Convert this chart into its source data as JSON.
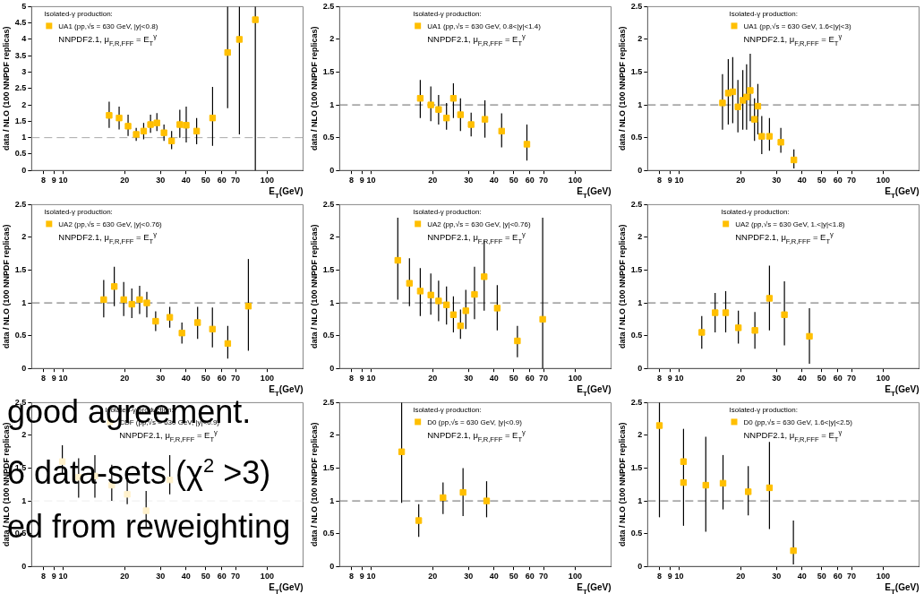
{
  "chart_data": [
    {
      "type": "scatter",
      "xlabel": "E$_{T}$(GeV)",
      "ylabel": "data / NLO (100 NNPDF replicas)",
      "legend_title": "Isolated-γ production:",
      "legend": "top left",
      "marker": "square",
      "log": "x",
      "xlim": [
        7,
        150
      ],
      "xticks": [
        8,
        9,
        10,
        20,
        30,
        40,
        50,
        60,
        70,
        100
      ],
      "ylim": [
        0,
        5
      ],
      "yticks": [
        0,
        0.5,
        1,
        1.5,
        2,
        2.5,
        3,
        3.5,
        4,
        4.5,
        5
      ],
      "ref_lines": [
        {
          "axis": "y",
          "value": 1,
          "color": "#aaaaaa",
          "line_style": "dashed"
        }
      ],
      "annotations": [
        "NNPDF2.1, μ$_{F,R,FFF}$ = E$_{T}$$^{γ}$"
      ],
      "series": [
        {
          "name": "UA1 (pp̄,√s = 630 GeV, |y|<0.8)",
          "color": "#ffbf00",
          "x": [
            16.8,
            18.8,
            20.8,
            22.8,
            24.8,
            26.8,
            28.8,
            31.2,
            34.0,
            37.3,
            40.1,
            45.1,
            54.0,
            64.0,
            73.1,
            87.5
          ],
          "values": [
            1.68,
            1.6,
            1.35,
            1.1,
            1.2,
            1.4,
            1.45,
            1.15,
            0.9,
            1.4,
            1.38,
            1.2,
            1.6,
            3.6,
            4.0,
            4.6
          ],
          "errors": [
            [
              1.3,
              2.1
            ],
            [
              1.25,
              1.95
            ],
            [
              1.05,
              1.7
            ],
            [
              0.9,
              1.3
            ],
            [
              0.95,
              1.45
            ],
            [
              1.15,
              1.7
            ],
            [
              1.2,
              1.75
            ],
            [
              0.9,
              1.4
            ],
            [
              0.65,
              1.2
            ],
            [
              1.0,
              1.85
            ],
            [
              0.85,
              1.95
            ],
            [
              0.8,
              1.6
            ],
            [
              0.75,
              2.55
            ],
            [
              1.9,
              5
            ],
            [
              1.1,
              5
            ],
            [
              0,
              5
            ]
          ]
        }
      ]
    },
    {
      "type": "scatter",
      "xlabel": "E$_{T}$(GeV)",
      "ylabel": "data / NLO (100 NNPDF replicas)",
      "legend_title": "Isolated-γ production:",
      "legend": "top",
      "marker": "square",
      "log": "x",
      "xlim": [
        7,
        150
      ],
      "xticks": [
        8,
        9,
        10,
        20,
        30,
        40,
        50,
        60,
        70,
        100
      ],
      "ylim": [
        0,
        2.5
      ],
      "yticks": [
        0,
        0.5,
        1,
        1.5,
        2,
        2.5
      ],
      "ref_lines": [
        {
          "axis": "y",
          "value": 1,
          "color": "#666666",
          "line_style": "dashed"
        }
      ],
      "annotations": [
        "NNPDF2.1, μ$_{F,R,FFF}$ = E$_{T}$$^{γ}$"
      ],
      "series": [
        {
          "name": "UA1 (pp̄,√s = 630 GeV, 0.8<|y|<1.4)",
          "color": "#ffbf00",
          "x": [
            17.4,
            19.6,
            21.4,
            23.4,
            25.3,
            27.4,
            30.9,
            36.1,
            43.6,
            58.0
          ],
          "values": [
            1.1,
            1.0,
            0.93,
            0.8,
            1.1,
            0.85,
            0.7,
            0.78,
            0.6,
            0.4
          ],
          "errors": [
            [
              0.8,
              1.38
            ],
            [
              0.75,
              1.28
            ],
            [
              0.7,
              1.15
            ],
            [
              0.62,
              1.03
            ],
            [
              0.8,
              1.33
            ],
            [
              0.6,
              1.1
            ],
            [
              0.52,
              0.88
            ],
            [
              0.5,
              1.07
            ],
            [
              0.35,
              0.87
            ],
            [
              0.15,
              0.7
            ]
          ]
        }
      ]
    },
    {
      "type": "scatter",
      "xlabel": "E$_{T}$(GeV)",
      "ylabel": "data / NLO (100 NNPDF replicas)",
      "legend_title": "Isolated-γ production:",
      "legend": "top right",
      "marker": "square",
      "log": "x",
      "xlim": [
        7,
        150
      ],
      "xticks": [
        8,
        9,
        10,
        20,
        30,
        40,
        50,
        60,
        70,
        100
      ],
      "ylim": [
        0,
        2.5
      ],
      "yticks": [
        0,
        0.5,
        1,
        1.5,
        2,
        2.5
      ],
      "ref_lines": [
        {
          "axis": "y",
          "value": 1,
          "color": "#666666",
          "line_style": "dashed"
        }
      ],
      "annotations": [
        "NNPDF2.1, μ$_{F,R,FFF}$ = E$_{T}$$^{γ}$"
      ],
      "series": [
        {
          "name": "UA1 (pp̄,√s = 630 GeV, 1.6<|y|<3)",
          "color": "#ffbf00",
          "x": [
            16.3,
            17.4,
            18.3,
            19.4,
            20.5,
            21.4,
            22.3,
            23.4,
            24.3,
            25.4,
            27.7,
            31.5,
            36.5
          ],
          "values": [
            1.03,
            1.18,
            1.2,
            0.97,
            1.07,
            1.12,
            1.22,
            0.78,
            0.98,
            0.52,
            0.52,
            0.43,
            0.16
          ],
          "errors": [
            [
              0.62,
              1.47
            ],
            [
              0.7,
              1.7
            ],
            [
              0.72,
              1.73
            ],
            [
              0.58,
              1.38
            ],
            [
              0.62,
              1.53
            ],
            [
              0.62,
              1.62
            ],
            [
              0.75,
              1.78
            ],
            [
              0.45,
              1.1
            ],
            [
              0.55,
              1.32
            ],
            [
              0.25,
              0.83
            ],
            [
              0.3,
              0.8
            ],
            [
              0.27,
              0.65
            ],
            [
              0.03,
              0.32
            ]
          ]
        }
      ]
    },
    {
      "type": "scatter",
      "xlabel": "E$_{T}$(GeV)",
      "ylabel": "data / NLO (100 NNPDF replicas)",
      "legend_title": "Isolated-γ production:",
      "legend": "top left",
      "marker": "square",
      "log": "x",
      "xlim": [
        7,
        150
      ],
      "xticks": [
        8,
        9,
        10,
        20,
        30,
        40,
        50,
        60,
        70,
        100
      ],
      "ylim": [
        0,
        2.5
      ],
      "yticks": [
        0,
        0.5,
        1,
        1.5,
        2,
        2.5
      ],
      "ref_lines": [
        {
          "axis": "y",
          "value": 1,
          "color": "#666666",
          "line_style": "dashed"
        }
      ],
      "annotations": [
        "NNPDF2.1, μ$_{F,R,FFF}$ = E$_{T}$$^{γ}$"
      ],
      "series": [
        {
          "name": "UA2 (pp̄,√s = 630 GeV, |y|<0.76)",
          "color": "#ffbf00",
          "x": [
            15.8,
            17.8,
            19.8,
            21.7,
            23.7,
            25.7,
            28.4,
            33.3,
            38.2,
            45.6,
            53.9,
            64.1,
            80.9
          ],
          "values": [
            1.05,
            1.25,
            1.05,
            0.98,
            1.05,
            1.0,
            0.72,
            0.78,
            0.54,
            0.7,
            0.6,
            0.38,
            0.95
          ],
          "errors": [
            [
              0.78,
              1.35
            ],
            [
              0.95,
              1.55
            ],
            [
              0.8,
              1.32
            ],
            [
              0.77,
              1.22
            ],
            [
              0.83,
              1.26
            ],
            [
              0.78,
              1.17
            ],
            [
              0.57,
              0.87
            ],
            [
              0.62,
              0.94
            ],
            [
              0.38,
              0.7
            ],
            [
              0.45,
              0.94
            ],
            [
              0.32,
              0.93
            ],
            [
              0.15,
              0.65
            ],
            [
              0.27,
              1.67
            ]
          ]
        }
      ]
    },
    {
      "type": "scatter",
      "xlabel": "E$_{T}$(GeV)",
      "ylabel": "data / NLO (100 NNPDF replicas)",
      "legend_title": "Isolated-γ production:",
      "legend": "top",
      "marker": "square",
      "log": "x",
      "xlim": [
        7,
        150
      ],
      "xticks": [
        8,
        9,
        10,
        20,
        30,
        40,
        50,
        60,
        70,
        100
      ],
      "ylim": [
        0,
        2.5
      ],
      "yticks": [
        0,
        0.5,
        1,
        1.5,
        2,
        2.5
      ],
      "ref_lines": [
        {
          "axis": "y",
          "value": 1,
          "color": "#666666",
          "line_style": "dashed"
        }
      ],
      "annotations": [
        "NNPDF2.1, μ$_{F,R,FFF}$ = E$_{T}$$^{γ}$"
      ],
      "series": [
        {
          "name": "UA2 (pp̄,√s = 630 GeV, |y|<0.76)",
          "color": "#ffbf00",
          "x": [
            13.5,
            15.4,
            17.4,
            19.6,
            21.4,
            23.4,
            25.3,
            27.4,
            29.1,
            32.1,
            35.8,
            41.5,
            52.1,
            69.3
          ],
          "values": [
            1.65,
            1.3,
            1.18,
            1.12,
            1.03,
            0.97,
            0.82,
            0.65,
            0.88,
            1.13,
            1.4,
            0.92,
            0.42,
            0.75
          ],
          "errors": [
            [
              1.05,
              2.3
            ],
            [
              0.95,
              1.68
            ],
            [
              0.8,
              1.53
            ],
            [
              0.82,
              1.45
            ],
            [
              0.72,
              1.34
            ],
            [
              0.67,
              1.25
            ],
            [
              0.55,
              1.1
            ],
            [
              0.45,
              0.9
            ],
            [
              0.6,
              1.2
            ],
            [
              0.75,
              1.55
            ],
            [
              0.88,
              1.95
            ],
            [
              0.58,
              1.27
            ],
            [
              0.17,
              0.65
            ],
            [
              0,
              2.3
            ]
          ]
        }
      ]
    },
    {
      "type": "scatter",
      "xlabel": "E$_{T}$(GeV)",
      "ylabel": "data / NLO (100 NNPDF replicas)",
      "legend_title": "Isolated-γ production:",
      "legend": "top",
      "marker": "square",
      "log": "x",
      "xlim": [
        7,
        150
      ],
      "xticks": [
        8,
        9,
        10,
        20,
        30,
        40,
        50,
        60,
        70,
        100
      ],
      "ylim": [
        0,
        2.5
      ],
      "yticks": [
        0,
        0.5,
        1,
        1.5,
        2,
        2.5
      ],
      "ref_lines": [
        {
          "axis": "y",
          "value": 1,
          "color": "#666666",
          "line_style": "dashed"
        }
      ],
      "annotations": [
        "NNPDF2.1, μ$_{F,R,FFF}$ = E$_{T}$$^{γ}$"
      ],
      "series": [
        {
          "name": "UA2 (pp̄,√s = 630 GeV, 1.<|y|<1.8)",
          "color": "#ffbf00",
          "x": [
            12.9,
            15.0,
            16.9,
            19.5,
            23.5,
            27.7,
            32.8,
            43.5
          ],
          "values": [
            0.55,
            0.85,
            0.85,
            0.62,
            0.58,
            1.07,
            0.82,
            0.49
          ],
          "errors": [
            [
              0.3,
              0.8
            ],
            [
              0.55,
              1.15
            ],
            [
              0.55,
              1.18
            ],
            [
              0.38,
              0.88
            ],
            [
              0.3,
              0.86
            ],
            [
              0.58,
              1.57
            ],
            [
              0.35,
              1.33
            ],
            [
              0.07,
              0.92
            ]
          ]
        }
      ]
    },
    {
      "type": "scatter",
      "xlabel": "E$_{T}$(GeV)",
      "ylabel": "data / NLO (100 NNPDF replicas)",
      "legend_title": "Isolated-γ production:",
      "legend": "top",
      "marker": "square",
      "log": "x",
      "xlim": [
        7,
        150
      ],
      "xticks": [
        8,
        9,
        10,
        20,
        30,
        40,
        50,
        60,
        70,
        100
      ],
      "ylim": [
        0,
        2.5
      ],
      "yticks": [
        0,
        0.5,
        1,
        1.5,
        2,
        2.5
      ],
      "ref_lines": [
        {
          "axis": "y",
          "value": 1,
          "color": "#eeeeee",
          "line_style": "dashed"
        }
      ],
      "annotations": [
        "NNPDF2.1, μ$_{F,R,FFF}$ = E$_{T}$$^{γ}$",
        "good agreement.",
        "6 data-sets (χ$^{2}$ >3)",
        "ed from reweighting"
      ],
      "series": [
        {
          "name": "CDF (pp̄,√s = 630 GeV, |y|<0.9)",
          "color": "#fff1cc",
          "x": [
            9.9,
            11.9,
            14.3,
            17.3,
            20.6,
            25.5,
            33.3
          ],
          "values": [
            1.6,
            1.36,
            1.38,
            1.24,
            1.1,
            0.85,
            1.32
          ],
          "errors": [
            [
              1.4,
              1.85
            ],
            [
              1.05,
              1.65
            ],
            [
              1.05,
              1.7
            ],
            [
              1.0,
              1.55
            ],
            [
              0.95,
              1.45
            ],
            [
              0.6,
              1.15
            ],
            [
              1.1,
              1.7
            ]
          ]
        }
      ]
    },
    {
      "type": "scatter",
      "xlabel": "E$_{T}$(GeV)",
      "ylabel": "data / NLO (100 NNPDF replicas)",
      "legend_title": "Isolated-γ production:",
      "legend": "top",
      "marker": "square",
      "log": "x",
      "xlim": [
        7,
        150
      ],
      "xticks": [
        8,
        9,
        10,
        20,
        30,
        40,
        50,
        60,
        70,
        100
      ],
      "ylim": [
        0,
        2.5
      ],
      "yticks": [
        0,
        0.5,
        1,
        1.5,
        2,
        2.5
      ],
      "ref_lines": [
        {
          "axis": "y",
          "value": 1,
          "color": "#666666",
          "line_style": "dashed"
        }
      ],
      "annotations": [
        "NNPDF2.1, μ$_{F,R,FFF}$ = E$_{T}$$^{γ}$"
      ],
      "series": [
        {
          "name": "D0 (pp̄,√s = 630 GeV, |y|<0.9)",
          "color": "#ffbf00",
          "x": [
            14.1,
            17.1,
            22.5,
            28.2,
            36.8
          ],
          "values": [
            1.75,
            0.7,
            1.05,
            1.13,
            1.0
          ],
          "errors": [
            [
              0.97,
              2.5
            ],
            [
              0.45,
              0.95
            ],
            [
              0.8,
              1.28
            ],
            [
              0.77,
              1.5
            ],
            [
              0.75,
              1.3
            ]
          ]
        }
      ]
    },
    {
      "type": "scatter",
      "xlabel": "E$_{T}$(GeV)",
      "ylabel": "data / NLO (100 NNPDF replicas)",
      "legend_title": "Isolated-γ production:",
      "legend": "top right",
      "marker": "square",
      "log": "x",
      "xlim": [
        7,
        150
      ],
      "xticks": [
        8,
        9,
        10,
        20,
        30,
        40,
        50,
        60,
        70,
        100
      ],
      "ylim": [
        0,
        2.5
      ],
      "yticks": [
        0,
        0.5,
        1,
        1.5,
        2,
        2.5
      ],
      "ref_lines": [
        {
          "axis": "y",
          "value": 1,
          "color": "#666666",
          "line_style": "dashed"
        }
      ],
      "annotations": [
        "NNPDF2.1, μ$_{F,R,FFF}$ = E$_{T}$$^{γ}$"
      ],
      "series": [
        {
          "name": "D0 (pp̄,√s = 630 GeV, 1.6<|y|<2.5)",
          "color": "#ffbf00",
          "x": [
            8.0,
            10.5,
            10.5,
            13.5,
            16.4,
            21.8,
            27.7,
            36.3
          ],
          "values": [
            2.15,
            1.6,
            1.28,
            1.24,
            1.27,
            1.14,
            1.2,
            0.24
          ],
          "errors": [
            [
              0.75,
              2.5
            ],
            null,
            [
              0.62,
              2.1
            ],
            [
              0.53,
              1.98
            ],
            [
              0.87,
              1.7
            ],
            [
              0.78,
              1.53
            ],
            [
              0.57,
              1.9
            ],
            [
              0.03,
              0.7
            ]
          ]
        }
      ]
    }
  ]
}
